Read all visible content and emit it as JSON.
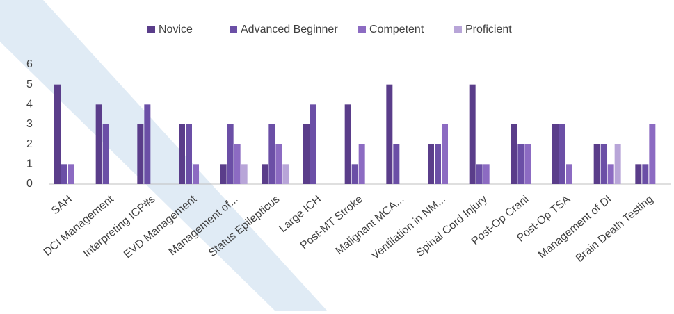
{
  "chart_data": {
    "type": "bar",
    "categories": [
      "SAH",
      "DCI Management",
      "Interpreting ICP#s",
      "EVD Management",
      "Management of...",
      "Status Epilepticus",
      "Large ICH",
      "Post-MT Stroke",
      "Malignant MCA...",
      "Ventilation in NM...",
      "Spinal Cord Injury",
      "Post-Op Crani",
      "Post-Op TSA",
      "Management of DI",
      "Brain Death Testing"
    ],
    "series": [
      {
        "name": "Novice",
        "color": "#5a3d8a",
        "values": [
          5,
          4,
          3,
          3,
          1,
          1,
          3,
          4,
          5,
          2,
          5,
          3,
          3,
          2,
          1
        ]
      },
      {
        "name": "Advanced Beginner",
        "color": "#6b4fa6",
        "values": [
          1,
          3,
          4,
          3,
          3,
          3,
          4,
          1,
          2,
          2,
          1,
          2,
          3,
          2,
          1
        ]
      },
      {
        "name": "Competent",
        "color": "#8c6bc2",
        "values": [
          1,
          0,
          0,
          1,
          2,
          2,
          0,
          2,
          0,
          3,
          1,
          2,
          1,
          1,
          3
        ]
      },
      {
        "name": "Proficient",
        "color": "#b8a5d8",
        "values": [
          0,
          0,
          0,
          0,
          1,
          1,
          0,
          0,
          0,
          0,
          0,
          0,
          0,
          2,
          0
        ]
      }
    ],
    "ylim": [
      0,
      6
    ],
    "yticks": [
      0,
      1,
      2,
      3,
      4,
      5,
      6
    ],
    "grid": false,
    "legend": "top"
  }
}
